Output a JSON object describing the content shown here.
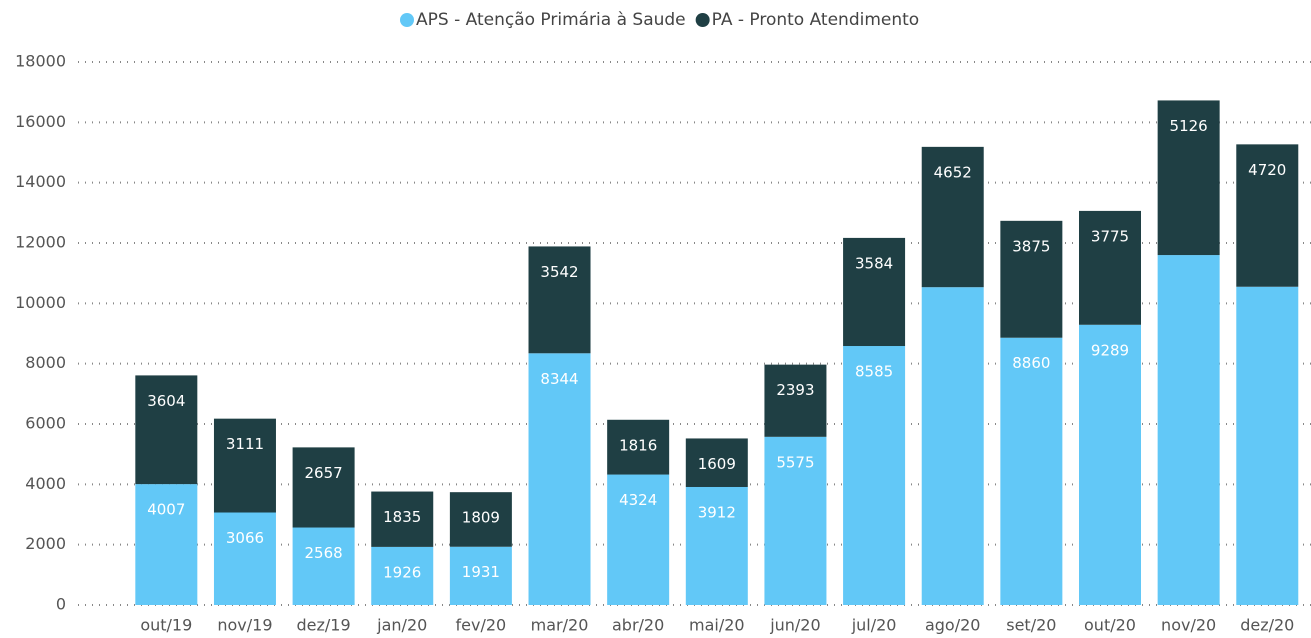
{
  "chart_data": {
    "type": "bar",
    "stacked": true,
    "categories": [
      "out/19",
      "nov/19",
      "dez/19",
      "jan/20",
      "fev/20",
      "mar/20",
      "abr/20",
      "mai/20",
      "jun/20",
      "jul/20",
      "ago/20",
      "set/20",
      "out/20",
      "nov/20",
      "dez/20"
    ],
    "series": [
      {
        "name": "APS - Atenção Primária à Saude",
        "color": "#62c8f7",
        "values": [
          4007,
          3066,
          2568,
          1926,
          1931,
          8344,
          4324,
          3912,
          5575,
          8585,
          10535,
          8860,
          9289,
          11600,
          10550
        ],
        "value_labels": [
          "4007",
          "3066",
          "2568",
          "1926",
          "1931",
          "8344",
          "4324",
          "3912",
          "5575",
          "8585",
          null,
          "8860",
          "9289",
          null,
          null
        ]
      },
      {
        "name": "PA - Pronto Atendimento",
        "color": "#1f3f44",
        "values": [
          3604,
          3111,
          2657,
          1835,
          1809,
          3542,
          1816,
          1609,
          2393,
          3584,
          4652,
          3875,
          3775,
          5126,
          4720
        ]
      }
    ],
    "ylim": [
      0,
      18000
    ],
    "yticks": [
      0,
      2000,
      4000,
      6000,
      8000,
      10000,
      12000,
      14000,
      16000,
      18000
    ],
    "grid": true,
    "legend": "top"
  }
}
